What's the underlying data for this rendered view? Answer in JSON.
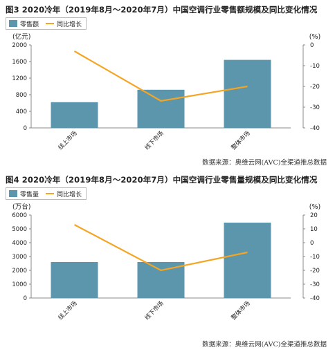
{
  "colors": {
    "bar": "#5b96ac",
    "line": "#f5a523",
    "axis": "#888888"
  },
  "chart_data": [
    {
      "type": "bar",
      "title": "图3 2020冷年（2019年8月～2020年7月）中国空调行业零售额规模及同比变化情况",
      "categories": [
        "线上市场",
        "线下市场",
        "整体市场"
      ],
      "series": [
        {
          "name": "零售额",
          "type": "bar",
          "axis": "left",
          "values": [
            620,
            920,
            1640
          ]
        },
        {
          "name": "同比增长",
          "type": "line",
          "axis": "right",
          "values": [
            -3,
            -27,
            -20
          ]
        }
      ],
      "ylabel": "(亿元)",
      "y2label": "(%)",
      "ylim": [
        0,
        2000
      ],
      "yticks": [
        0,
        400,
        800,
        1200,
        1600,
        2000
      ],
      "y2lim": [
        -40,
        0
      ],
      "y2ticks": [
        0,
        -10,
        -20,
        -30,
        -40
      ],
      "source": "数据来源：奥维云网(AVC)全渠道推总数据",
      "legend_position": "top-left",
      "grid": false
    },
    {
      "type": "bar",
      "title": "图4 2020冷年（2019年8月～2020年7月）中国空调行业零售量规模及同比变化情况",
      "categories": [
        "线上市场",
        "线下市场",
        "整体市场"
      ],
      "series": [
        {
          "name": "零售量",
          "type": "bar",
          "axis": "left",
          "values": [
            2600,
            2600,
            5450
          ]
        },
        {
          "name": "同比增长",
          "type": "line",
          "axis": "right",
          "values": [
            13,
            -20,
            -7
          ]
        }
      ],
      "ylabel": "(万台)",
      "y2label": "(%)",
      "ylim": [
        0,
        6000
      ],
      "yticks": [
        0,
        1000,
        2000,
        3000,
        4000,
        5000,
        6000
      ],
      "y2lim": [
        -40,
        20
      ],
      "y2ticks": [
        20,
        10,
        0,
        -10,
        -20,
        -30,
        -40
      ],
      "source": "数据来源：奥维云网(AVC)全渠道推总数据",
      "legend_position": "top-left",
      "grid": false
    }
  ]
}
